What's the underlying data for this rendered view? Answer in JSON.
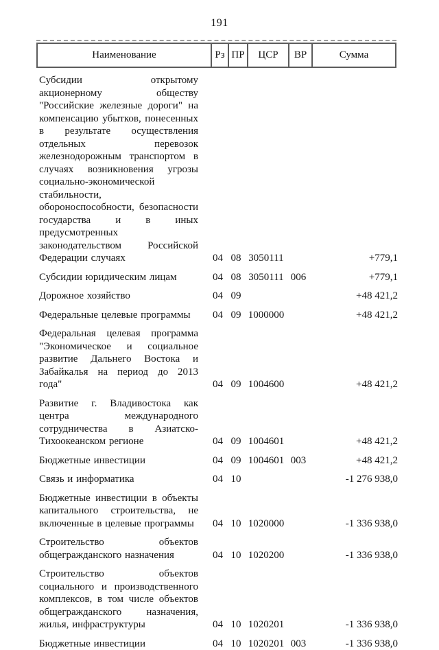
{
  "page": {
    "number": "191"
  },
  "table": {
    "columns": [
      {
        "key": "name",
        "label": "Наименование"
      },
      {
        "key": "rz",
        "label": "Рз"
      },
      {
        "key": "pr",
        "label": "ПР"
      },
      {
        "key": "csr",
        "label": "ЦСР"
      },
      {
        "key": "vr",
        "label": "ВР"
      },
      {
        "key": "sum",
        "label": "Сумма"
      }
    ],
    "rows": [
      {
        "name": "Субсидии открытому акционерному обществу \"Российские железные дороги\" на компенсацию убытков, понесенных в результате осуществления отдельных перевозок железнодорожным транспортом в случаях возникновения угрозы социально-экономической стабильности, обороноспособности, безопасности государства и в иных предусмотренных законодательством Российской Федерации случаях",
        "rz": "04",
        "pr": "08",
        "csr": "3050111",
        "vr": "",
        "sum": "+779,1"
      },
      {
        "name": "Субсидии юридическим лицам",
        "rz": "04",
        "pr": "08",
        "csr": "3050111",
        "vr": "006",
        "sum": "+779,1"
      },
      {
        "name": "Дорожное хозяйство",
        "rz": "04",
        "pr": "09",
        "csr": "",
        "vr": "",
        "sum": "+48 421,2"
      },
      {
        "name": "Федеральные целевые программы",
        "rz": "04",
        "pr": "09",
        "csr": "1000000",
        "vr": "",
        "sum": "+48 421,2"
      },
      {
        "name": "Федеральная целевая программа \"Экономическое и социальное развитие Дальнего Востока и Забайкалья на период до 2013 года\"",
        "rz": "04",
        "pr": "09",
        "csr": "1004600",
        "vr": "",
        "sum": "+48 421,2"
      },
      {
        "name": "Развитие г. Владивостока как центра международного сотрудничества в Азиатско-Тихоокеанском регионе",
        "rz": "04",
        "pr": "09",
        "csr": "1004601",
        "vr": "",
        "sum": "+48 421,2"
      },
      {
        "name": "Бюджетные инвестиции",
        "rz": "04",
        "pr": "09",
        "csr": "1004601",
        "vr": "003",
        "sum": "+48 421,2"
      },
      {
        "name": "Связь и информатика",
        "rz": "04",
        "pr": "10",
        "csr": "",
        "vr": "",
        "sum": "-1 276 938,0"
      },
      {
        "name": "Бюджетные инвестиции в объекты капитального строительства, не включенные в целевые программы",
        "rz": "04",
        "pr": "10",
        "csr": "1020000",
        "vr": "",
        "sum": "-1 336 938,0"
      },
      {
        "name": "Строительство объектов общегражданского назначения",
        "rz": "04",
        "pr": "10",
        "csr": "1020200",
        "vr": "",
        "sum": "-1 336 938,0"
      },
      {
        "name": "Строительство объектов социального и производственного комплексов, в том числе объектов общегражданского назначения, жилья, инфраструктуры",
        "rz": "04",
        "pr": "10",
        "csr": "1020201",
        "vr": "",
        "sum": "-1 336 938,0"
      },
      {
        "name": "Бюджетные инвестиции",
        "rz": "04",
        "pr": "10",
        "csr": "1020201",
        "vr": "003",
        "sum": "-1 336 938,0"
      }
    ]
  }
}
